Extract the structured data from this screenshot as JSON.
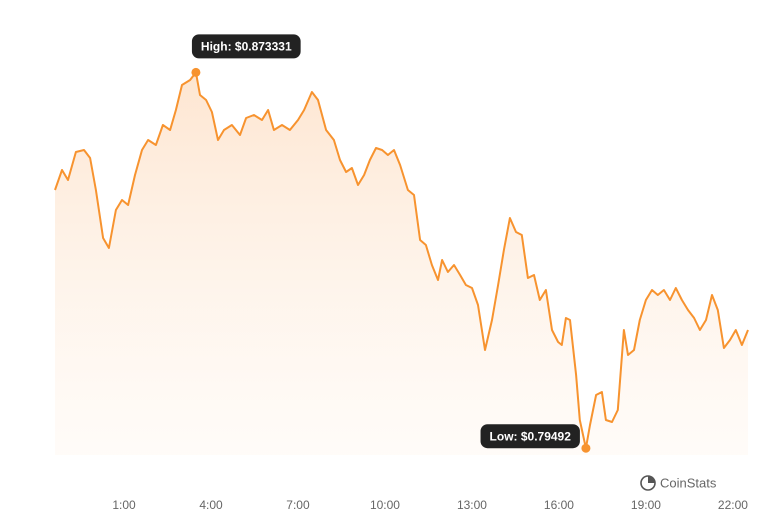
{
  "chart_data": {
    "type": "line",
    "color": "#f7932f",
    "brand": "CoinStats",
    "xlim": [
      -1.38,
      22.52
    ],
    "ylim": [
      0.7935,
      0.878
    ],
    "xticks": [
      {
        "value": 1,
        "label": "1:00"
      },
      {
        "value": 4,
        "label": "4:00"
      },
      {
        "value": 7,
        "label": "7:00"
      },
      {
        "value": 10,
        "label": "10:00"
      },
      {
        "value": 13,
        "label": "13:00"
      },
      {
        "value": 16,
        "label": "16:00"
      },
      {
        "value": 19,
        "label": "19:00"
      },
      {
        "value": 22,
        "label": "22:00"
      }
    ],
    "annotations": [
      {
        "label": "High: $0.873331",
        "x": 3.48,
        "value": 0.873331
      },
      {
        "label": "Low: $0.79492",
        "x": 16.93,
        "value": 0.79492
      }
    ],
    "x": [
      -1.38,
      -1.14,
      -0.93,
      -0.66,
      -0.38,
      -0.17,
      0.03,
      0.28,
      0.48,
      0.72,
      0.93,
      1.14,
      1.38,
      1.62,
      1.83,
      2.1,
      2.34,
      2.59,
      2.79,
      3.0,
      3.28,
      3.48,
      3.62,
      3.83,
      4.03,
      4.24,
      4.45,
      4.72,
      5.0,
      5.21,
      5.48,
      5.76,
      5.97,
      6.17,
      6.45,
      6.72,
      7.0,
      7.21,
      7.48,
      7.69,
      7.97,
      8.24,
      8.45,
      8.66,
      8.86,
      9.07,
      9.28,
      9.48,
      9.69,
      9.9,
      10.1,
      10.31,
      10.52,
      10.79,
      11.0,
      11.21,
      11.41,
      11.62,
      11.83,
      11.97,
      12.17,
      12.38,
      12.59,
      12.79,
      13.0,
      13.21,
      13.45,
      13.69,
      13.9,
      14.1,
      14.31,
      14.52,
      14.72,
      14.93,
      15.14,
      15.34,
      15.55,
      15.76,
      15.97,
      16.1,
      16.24,
      16.38,
      16.59,
      16.72,
      16.93,
      17.07,
      17.28,
      17.48,
      17.62,
      17.83,
      18.03,
      18.24,
      18.38,
      18.59,
      18.79,
      19.0,
      19.21,
      19.41,
      19.62,
      19.83,
      20.03,
      20.24,
      20.45,
      20.66,
      20.86,
      21.07,
      21.28,
      21.48,
      21.69,
      21.9,
      22.1,
      22.31,
      22.52
    ],
    "values": [
      0.84879,
      0.85296,
      0.85088,
      0.85672,
      0.85714,
      0.85547,
      0.84879,
      0.83877,
      0.83669,
      0.84462,
      0.8467,
      0.84566,
      0.85192,
      0.85714,
      0.85922,
      0.85818,
      0.86235,
      0.86131,
      0.86548,
      0.8707,
      0.87174,
      0.873331,
      0.86861,
      0.86757,
      0.86506,
      0.85922,
      0.86131,
      0.86235,
      0.86026,
      0.86381,
      0.86444,
      0.86339,
      0.86548,
      0.86131,
      0.86235,
      0.86131,
      0.86339,
      0.86548,
      0.86924,
      0.86757,
      0.86131,
      0.85922,
      0.85505,
      0.85255,
      0.85338,
      0.84983,
      0.85192,
      0.85505,
      0.85755,
      0.85714,
      0.85609,
      0.85714,
      0.85401,
      0.84879,
      0.84775,
      0.83836,
      0.83731,
      0.83314,
      0.83001,
      0.83418,
      0.83168,
      0.83314,
      0.83106,
      0.82897,
      0.82834,
      0.8248,
      0.81541,
      0.82167,
      0.82897,
      0.83627,
      0.84295,
      0.84003,
      0.8394,
      0.83043,
      0.83106,
      0.82584,
      0.82793,
      0.81958,
      0.81708,
      0.81645,
      0.82208,
      0.82167,
      0.81019,
      0.8008,
      0.79492,
      0.79976,
      0.80602,
      0.80664,
      0.8008,
      0.80039,
      0.80289,
      0.81958,
      0.81436,
      0.81541,
      0.82167,
      0.82584,
      0.82793,
      0.82688,
      0.82793,
      0.82584,
      0.82834,
      0.82584,
      0.82375,
      0.82208,
      0.81958,
      0.82167,
      0.82688,
      0.82375,
      0.81582,
      0.81749,
      0.81958,
      0.81645,
      0.81958
    ]
  }
}
